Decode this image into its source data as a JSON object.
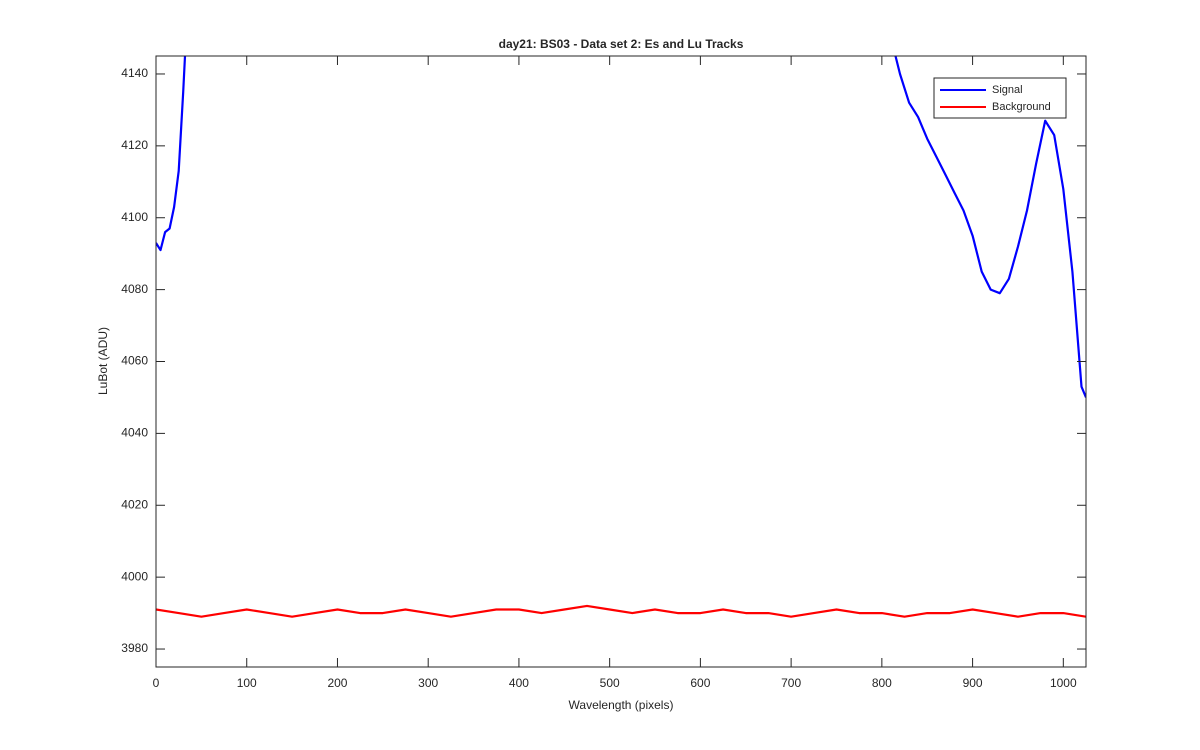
{
  "chart_data": {
    "type": "line",
    "title": "day21: BS03 - Data set 2: Es and Lu Tracks",
    "x_label": "Wavelength (pixels)",
    "y_label": "LuBot (ADU)",
    "xlim": [
      0,
      1025
    ],
    "ylim": [
      3975,
      4145
    ],
    "xticks": [
      0,
      100,
      200,
      300,
      400,
      500,
      600,
      700,
      800,
      900,
      1000
    ],
    "yticks": [
      3980,
      4000,
      4020,
      4040,
      4060,
      4080,
      4100,
      4120,
      4140
    ],
    "legend": "top-right",
    "series": [
      {
        "name": "Signal",
        "color": "#0000ff",
        "x": [
          0,
          5,
          10,
          15,
          20,
          25,
          30,
          32,
          400,
          815,
          820,
          830,
          840,
          850,
          860,
          870,
          880,
          890,
          900,
          910,
          920,
          930,
          940,
          950,
          960,
          970,
          980,
          990,
          1000,
          1010,
          1020,
          1025
        ],
        "values": [
          4093,
          4091,
          4096,
          4097,
          4103,
          4113,
          4135,
          4145,
          null,
          4145,
          4140,
          4132,
          4128,
          4122,
          4117,
          4112,
          4107,
          4102,
          4095,
          4085,
          4080,
          4079,
          4083,
          4092,
          4102,
          4115,
          4127,
          4123,
          4108,
          4085,
          4053,
          4050
        ]
      },
      {
        "name": "Background",
        "color": "#ff0000",
        "x": [
          0,
          25,
          50,
          75,
          100,
          125,
          150,
          175,
          200,
          225,
          250,
          275,
          300,
          325,
          350,
          375,
          400,
          425,
          450,
          475,
          500,
          525,
          550,
          575,
          600,
          625,
          650,
          675,
          700,
          725,
          750,
          775,
          800,
          825,
          850,
          875,
          900,
          925,
          950,
          975,
          1000,
          1025
        ],
        "values": [
          3991,
          3990,
          3989,
          3990,
          3991,
          3990,
          3989,
          3990,
          3991,
          3990,
          3990,
          3991,
          3990,
          3989,
          3990,
          3991,
          3991,
          3990,
          3991,
          3992,
          3991,
          3990,
          3991,
          3990,
          3990,
          3991,
          3990,
          3990,
          3989,
          3990,
          3991,
          3990,
          3990,
          3989,
          3990,
          3990,
          3991,
          3990,
          3989,
          3990,
          3990,
          3989
        ]
      }
    ]
  }
}
